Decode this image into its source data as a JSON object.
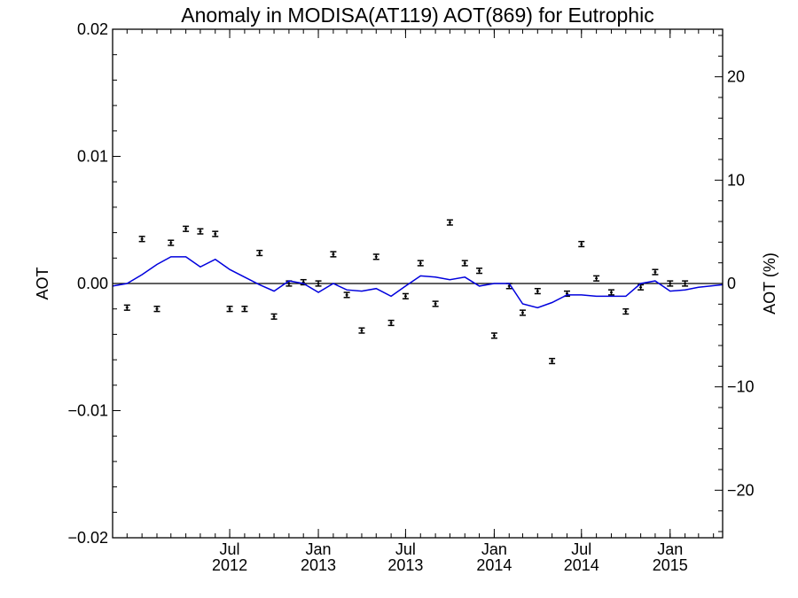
{
  "chart_data": {
    "type": "scatter",
    "title": "Anomaly in MODISA(AT119) AOT(869) for Eutrophic",
    "xlabel": "",
    "ylabel": "AOT",
    "ylabel_right": "AOT (%)",
    "xlim": [
      "2011-11-01",
      "2015-04-20"
    ],
    "ylim": [
      -0.02,
      0.02
    ],
    "ylim_right": [
      -24.6,
      24.6
    ],
    "y_ticks": [
      {
        "value": -0.02,
        "label": "−0.02"
      },
      {
        "value": -0.01,
        "label": "−0.01"
      },
      {
        "value": 0.0,
        "label": "0.00"
      },
      {
        "value": 0.01,
        "label": "0.01"
      },
      {
        "value": 0.02,
        "label": "0.02"
      }
    ],
    "y_ticks_right": [
      {
        "value": -20,
        "label": "−20"
      },
      {
        "value": -10,
        "label": "−10"
      },
      {
        "value": 0,
        "label": "0"
      },
      {
        "value": 10,
        "label": "10"
      },
      {
        "value": 20,
        "label": "20"
      }
    ],
    "x_ticks": [
      {
        "date": "2012-07-01",
        "month": "Jul",
        "year": "2012"
      },
      {
        "date": "2013-01-01",
        "month": "Jan",
        "year": "2013"
      },
      {
        "date": "2013-07-01",
        "month": "Jul",
        "year": "2013"
      },
      {
        "date": "2014-01-01",
        "month": "Jan",
        "year": "2014"
      },
      {
        "date": "2014-07-01",
        "month": "Jul",
        "year": "2014"
      },
      {
        "date": "2015-01-01",
        "month": "Jan",
        "year": "2015"
      }
    ],
    "reference_line": 0.0,
    "series": [
      {
        "type": "errorbar",
        "color": "#000000",
        "x": [
          "2011-12-01",
          "2012-01-01",
          "2012-02-01",
          "2012-03-01",
          "2012-04-01",
          "2012-05-01",
          "2012-06-01",
          "2012-07-01",
          "2012-08-01",
          "2012-09-01",
          "2012-10-01",
          "2012-11-01",
          "2012-12-01",
          "2013-01-01",
          "2013-02-01",
          "2013-03-01",
          "2013-04-01",
          "2013-05-01",
          "2013-06-01",
          "2013-07-01",
          "2013-08-01",
          "2013-09-01",
          "2013-10-01",
          "2013-11-01",
          "2013-12-01",
          "2014-01-01",
          "2014-02-01",
          "2014-03-01",
          "2014-04-01",
          "2014-05-01",
          "2014-06-01",
          "2014-07-01",
          "2014-08-01",
          "2014-09-01",
          "2014-10-01",
          "2014-11-01",
          "2014-12-01",
          "2015-01-01",
          "2015-02-01"
        ],
        "y": [
          -0.0019,
          0.0035,
          -0.002,
          0.0032,
          0.0043,
          0.0041,
          0.0039,
          -0.002,
          -0.002,
          0.0024,
          -0.0026,
          0.0,
          0.0001,
          0.0,
          0.0023,
          -0.0009,
          -0.0037,
          0.0021,
          -0.0031,
          -0.001,
          0.0016,
          -0.0016,
          0.0048,
          0.0016,
          0.001,
          -0.0041,
          -0.0002,
          -0.0023,
          -0.0006,
          -0.0061,
          -0.0008,
          0.0031,
          0.0004,
          -0.0007,
          -0.0022,
          -0.0003,
          0.0009,
          0.0,
          0.0
        ],
        "err": [
          0.0002,
          0.0002,
          0.0002,
          0.0002,
          0.0002,
          0.0002,
          0.0002,
          0.0002,
          0.0002,
          0.0002,
          0.0002,
          0.0002,
          0.0002,
          0.0002,
          0.0002,
          0.0002,
          0.0002,
          0.0002,
          0.0002,
          0.0002,
          0.0002,
          0.0002,
          0.0002,
          0.0002,
          0.0002,
          0.0002,
          0.0002,
          0.0002,
          0.0002,
          0.0002,
          0.0002,
          0.0002,
          0.0002,
          0.0002,
          0.0002,
          0.0002,
          0.0002,
          0.0002,
          0.0002
        ]
      },
      {
        "type": "line",
        "color": "#0000dd",
        "x": [
          "2011-11-01",
          "2011-12-01",
          "2012-01-01",
          "2012-02-01",
          "2012-03-01",
          "2012-04-01",
          "2012-05-01",
          "2012-06-01",
          "2012-07-01",
          "2012-08-01",
          "2012-09-01",
          "2012-10-01",
          "2012-11-01",
          "2012-12-01",
          "2013-01-01",
          "2013-02-01",
          "2013-03-01",
          "2013-04-01",
          "2013-05-01",
          "2013-06-01",
          "2013-07-01",
          "2013-08-01",
          "2013-09-01",
          "2013-10-01",
          "2013-11-01",
          "2013-12-01",
          "2014-01-01",
          "2014-02-01",
          "2014-03-01",
          "2014-04-01",
          "2014-05-01",
          "2014-06-01",
          "2014-07-01",
          "2014-08-01",
          "2014-09-01",
          "2014-10-01",
          "2014-11-01",
          "2014-12-01",
          "2015-01-01",
          "2015-02-01",
          "2015-03-01",
          "2015-04-20"
        ],
        "y": [
          -0.0002,
          0.0,
          0.0007,
          0.0015,
          0.0021,
          0.0021,
          0.0013,
          0.0019,
          0.0011,
          0.0005,
          -0.0001,
          -0.0006,
          0.0002,
          0.0,
          -0.0007,
          0.0,
          -0.0005,
          -0.0006,
          -0.0004,
          -0.001,
          -0.0002,
          0.0006,
          0.0005,
          0.0003,
          0.0005,
          -0.0002,
          0.0,
          0.0,
          -0.0016,
          -0.0019,
          -0.0015,
          -0.0009,
          -0.0009,
          -0.001,
          -0.001,
          -0.001,
          0.0,
          0.0002,
          -0.0006,
          -0.0005,
          -0.0003,
          -0.0001
        ]
      }
    ]
  }
}
